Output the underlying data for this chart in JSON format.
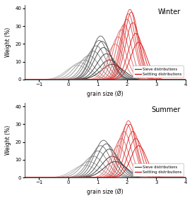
{
  "title_winter": "Winter",
  "title_summer": "Summer",
  "xlabel": "grain size (Ø)",
  "ylabel": "Weight (%)",
  "xlim": [
    -1.5,
    4.0
  ],
  "ylim": [
    0,
    42
  ],
  "yticks": [
    0,
    10,
    20,
    30,
    40
  ],
  "xticks": [
    -1,
    0,
    1,
    2,
    3,
    4
  ],
  "legend_sieve": "Sieve distributions",
  "legend_settling": "Settling distributions",
  "winter_sieve": [
    {
      "mu": 0.3,
      "sigma": 0.38,
      "amp": 8.0
    },
    {
      "mu": 0.4,
      "sigma": 0.36,
      "amp": 9.5
    },
    {
      "mu": 0.55,
      "sigma": 0.35,
      "amp": 11.0
    },
    {
      "mu": 0.7,
      "sigma": 0.34,
      "amp": 13.5
    },
    {
      "mu": 0.85,
      "sigma": 0.33,
      "amp": 16.0
    },
    {
      "mu": 0.95,
      "sigma": 0.32,
      "amp": 19.0
    },
    {
      "mu": 1.05,
      "sigma": 0.31,
      "amp": 22.0
    },
    {
      "mu": 1.1,
      "sigma": 0.31,
      "amp": 24.5
    },
    {
      "mu": 1.15,
      "sigma": 0.31,
      "amp": 21.5
    },
    {
      "mu": 1.2,
      "sigma": 0.32,
      "amp": 18.0
    },
    {
      "mu": 1.3,
      "sigma": 0.33,
      "amp": 14.5
    },
    {
      "mu": 1.4,
      "sigma": 0.35,
      "amp": 11.0
    },
    {
      "mu": 1.5,
      "sigma": 0.38,
      "amp": 8.5
    }
  ],
  "winter_settling": [
    {
      "mu": 1.6,
      "sigma": 0.28,
      "amp": 20.0
    },
    {
      "mu": 1.7,
      "sigma": 0.27,
      "amp": 24.0
    },
    {
      "mu": 1.8,
      "sigma": 0.26,
      "amp": 28.0
    },
    {
      "mu": 1.9,
      "sigma": 0.25,
      "amp": 31.0
    },
    {
      "mu": 2.0,
      "sigma": 0.25,
      "amp": 34.0
    },
    {
      "mu": 2.05,
      "sigma": 0.24,
      "amp": 37.0
    },
    {
      "mu": 2.1,
      "sigma": 0.24,
      "amp": 39.5
    },
    {
      "mu": 2.15,
      "sigma": 0.24,
      "amp": 38.0
    },
    {
      "mu": 2.2,
      "sigma": 0.25,
      "amp": 32.0
    },
    {
      "mu": 2.3,
      "sigma": 0.26,
      "amp": 26.0
    },
    {
      "mu": 2.4,
      "sigma": 0.27,
      "amp": 21.0
    }
  ],
  "summer_sieve": [
    {
      "mu": 0.55,
      "sigma": 0.4,
      "amp": 7.0
    },
    {
      "mu": 0.7,
      "sigma": 0.38,
      "amp": 9.0
    },
    {
      "mu": 0.85,
      "sigma": 0.36,
      "amp": 12.0
    },
    {
      "mu": 1.0,
      "sigma": 0.34,
      "amp": 15.0
    },
    {
      "mu": 1.1,
      "sigma": 0.33,
      "amp": 18.0
    },
    {
      "mu": 1.2,
      "sigma": 0.32,
      "amp": 21.0
    },
    {
      "mu": 1.3,
      "sigma": 0.33,
      "amp": 19.0
    },
    {
      "mu": 1.4,
      "sigma": 0.34,
      "amp": 16.0
    },
    {
      "mu": 1.5,
      "sigma": 0.36,
      "amp": 12.0
    },
    {
      "mu": 1.6,
      "sigma": 0.38,
      "amp": 9.0
    }
  ],
  "summer_settling": [
    {
      "mu": 1.7,
      "sigma": 0.27,
      "amp": 18.0
    },
    {
      "mu": 1.8,
      "sigma": 0.26,
      "amp": 22.0
    },
    {
      "mu": 1.9,
      "sigma": 0.25,
      "amp": 26.0
    },
    {
      "mu": 2.0,
      "sigma": 0.25,
      "amp": 30.0
    },
    {
      "mu": 2.05,
      "sigma": 0.24,
      "amp": 32.0
    },
    {
      "mu": 2.1,
      "sigma": 0.24,
      "amp": 30.0
    },
    {
      "mu": 2.2,
      "sigma": 0.25,
      "amp": 26.0
    },
    {
      "mu": 2.3,
      "sigma": 0.26,
      "amp": 22.0
    },
    {
      "mu": 2.4,
      "sigma": 0.27,
      "amp": 18.0
    }
  ],
  "sieve_color_dark": "#1a1a1a",
  "sieve_color_mid": "#666666",
  "settling_color_dark": "#cc0000",
  "settling_color_light": "#ff6666",
  "line_width": 0.7
}
